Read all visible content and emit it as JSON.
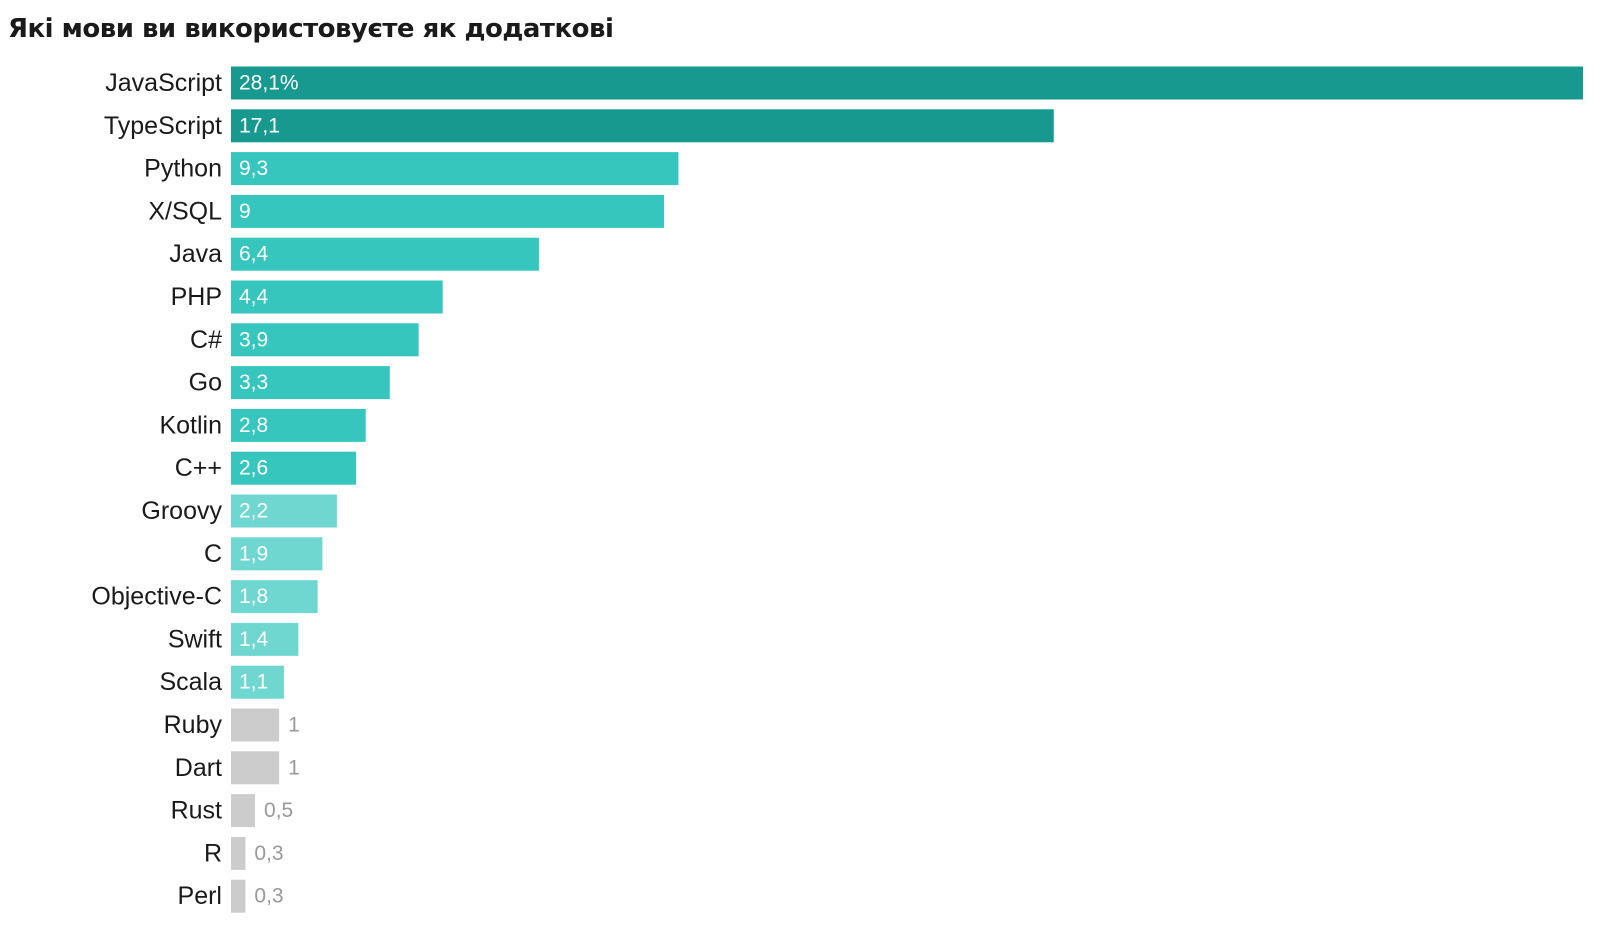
{
  "title": "Які мови ви використовуєте як додаткові",
  "chart_data": {
    "type": "bar",
    "orientation": "horizontal",
    "title": "Які мови ви використовуєте як додаткові",
    "xlabel": "",
    "ylabel": "",
    "unit": "%",
    "xlim": [
      0,
      28.1
    ],
    "grid": false,
    "categories": [
      "JavaScript",
      "TypeScript",
      "Python",
      "X/SQL",
      "Java",
      "PHP",
      "C#",
      "Go",
      "Kotlin",
      "C++",
      "Groovy",
      "C",
      "Objective-C",
      "Swift",
      "Scala",
      "Ruby",
      "Dart",
      "Rust",
      "R",
      "Perl"
    ],
    "values": [
      28.1,
      17.1,
      9.3,
      9,
      6.4,
      4.4,
      3.9,
      3.3,
      2.8,
      2.6,
      2.2,
      1.9,
      1.8,
      1.4,
      1.1,
      1,
      1,
      0.5,
      0.3,
      0.3
    ],
    "value_labels": [
      "28,1%",
      "17,1",
      "9,3",
      "9",
      "6,4",
      "4,4",
      "3,9",
      "3,3",
      "2,8",
      "2,6",
      "2,2",
      "1,9",
      "1,8",
      "1,4",
      "1,1",
      "1",
      "1",
      "0,5",
      "0,3",
      "0,3"
    ],
    "bar_colors": [
      "#17998f",
      "#17998f",
      "#37c6be",
      "#37c6be",
      "#37c6be",
      "#37c6be",
      "#37c6be",
      "#37c6be",
      "#37c6be",
      "#37c6be",
      "#6fd6d0",
      "#6fd6d0",
      "#6fd6d0",
      "#6fd6d0",
      "#6fd6d0",
      "#cccccc",
      "#cccccc",
      "#cccccc",
      "#cccccc",
      "#cccccc"
    ],
    "label_colors": [
      "#ffffff",
      "#ffffff",
      "#ffffff",
      "#ffffff",
      "#ffffff",
      "#ffffff",
      "#ffffff",
      "#ffffff",
      "#ffffff",
      "#ffffff",
      "#ffffff",
      "#ffffff",
      "#ffffff",
      "#ffffff",
      "#ffffff",
      "#999999",
      "#999999",
      "#999999",
      "#999999",
      "#999999"
    ]
  }
}
